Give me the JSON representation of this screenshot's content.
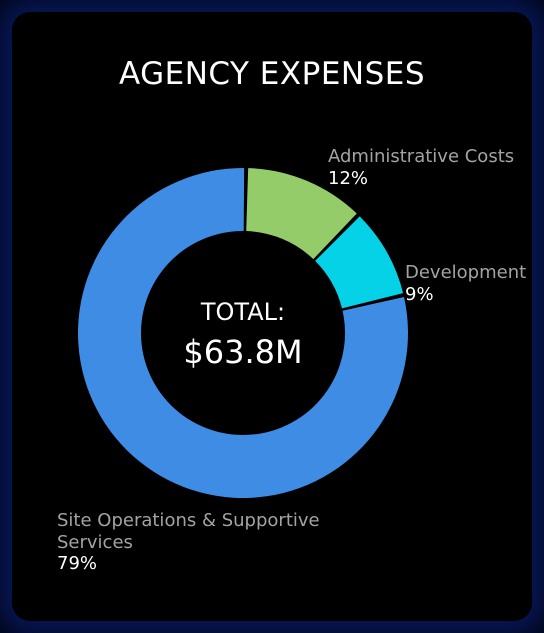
{
  "chart_data": {
    "type": "pie",
    "title": "AGENCY EXPENSES",
    "center_caption": "TOTAL:",
    "center_value": "$63.8M",
    "slices": [
      {
        "name": "Administrative Costs",
        "value": 12,
        "label": "12%",
        "color": "#95cc6a"
      },
      {
        "name": "Development",
        "value": 9,
        "label": "9%",
        "color": "#05d2e6"
      },
      {
        "name": "Site Operations & Supportive Services",
        "value": 79,
        "label": "79%",
        "color": "#3f8ce4"
      }
    ]
  }
}
